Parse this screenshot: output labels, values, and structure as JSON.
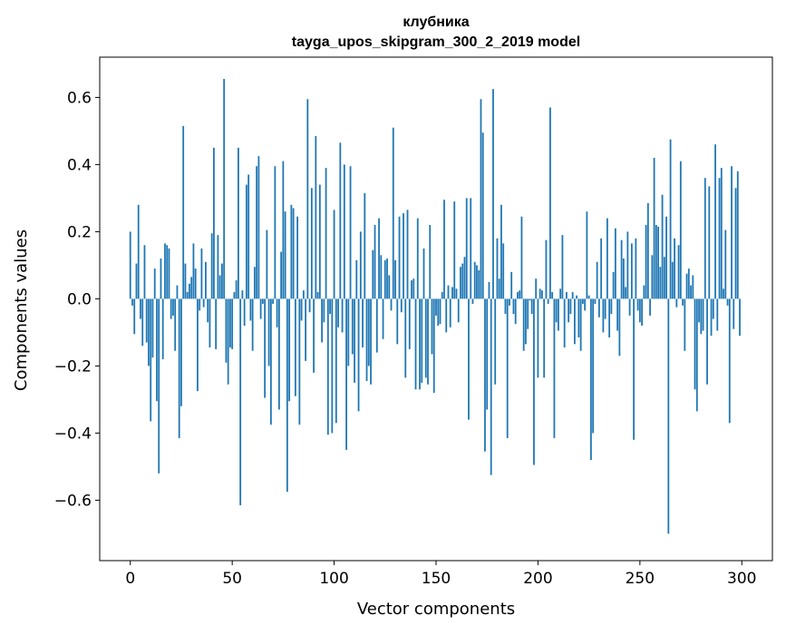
{
  "chart_data": {
    "type": "bar",
    "title": "клубника",
    "subtitle": "tayga_upos_skipgram_300_2_2019 model",
    "xlabel": "Vector components",
    "ylabel": "Components values",
    "xlim": [
      -15,
      315
    ],
    "ylim": [
      -0.78,
      0.72
    ],
    "xticks": [
      0,
      50,
      100,
      150,
      200,
      250,
      300
    ],
    "yticks": [
      -0.6,
      -0.4,
      -0.2,
      0.0,
      0.2,
      0.4,
      0.6
    ],
    "ytick_labels": [
      "−0.6",
      "−0.4",
      "−0.2",
      "0.0",
      "0.2",
      "0.4",
      "0.6"
    ],
    "grid": false,
    "bar_color": "#1f77b4",
    "values": [
      0.2,
      -0.02,
      -0.105,
      0.105,
      0.28,
      -0.06,
      -0.14,
      0.16,
      -0.13,
      -0.2,
      -0.365,
      -0.175,
      0.09,
      -0.305,
      -0.52,
      0.12,
      -0.18,
      0.165,
      0.16,
      0.15,
      -0.06,
      -0.05,
      -0.155,
      0.04,
      -0.415,
      -0.32,
      0.515,
      0.105,
      0.02,
      0.045,
      0.065,
      0.165,
      0.09,
      -0.275,
      -0.035,
      0.15,
      -0.025,
      0.11,
      -0.07,
      -0.145,
      0.195,
      0.45,
      -0.15,
      0.19,
      0.07,
      0.105,
      0.655,
      -0.19,
      -0.255,
      -0.145,
      -0.15,
      0.02,
      0.055,
      0.45,
      -0.615,
      0.025,
      -0.08,
      0.34,
      0.37,
      -0.065,
      -0.155,
      0.095,
      0.395,
      0.425,
      -0.06,
      -0.015,
      -0.295,
      0.205,
      -0.2,
      -0.375,
      -0.015,
      0.395,
      -0.085,
      -0.33,
      0.14,
      0.41,
      0.26,
      -0.575,
      -0.305,
      0.28,
      0.27,
      -0.29,
      0.245,
      -0.375,
      -0.065,
      0.025,
      -0.185,
      0.595,
      -0.04,
      0.33,
      -0.22,
      0.485,
      0.02,
      0.34,
      -0.13,
      -0.07,
      0.39,
      -0.405,
      -0.045,
      -0.4,
      0.265,
      -0.37,
      -0.085,
      0.465,
      -0.1,
      0.4,
      -0.45,
      -0.2,
      0.395,
      -0.165,
      -0.25,
      0.115,
      -0.335,
      0.2,
      -0.145,
      0.315,
      -0.245,
      -0.2,
      -0.255,
      0.145,
      0.22,
      -0.16,
      0.24,
      0.13,
      -0.12,
      0.115,
      0.12,
      0.07,
      -0.035,
      0.51,
      0.115,
      -0.135,
      0.245,
      -0.04,
      0.255,
      -0.235,
      0.265,
      -0.15,
      0.055,
      0.06,
      -0.27,
      0.24,
      -0.27,
      -0.25,
      0.15,
      -0.235,
      -0.255,
      0.22,
      -0.165,
      -0.28,
      -0.05,
      -0.08,
      -0.075,
      0.02,
      0.295,
      -0.1,
      0.04,
      -0.085,
      0.035,
      0.29,
      0.03,
      -0.07,
      0.095,
      0.105,
      0.125,
      0.3,
      -0.36,
      0.3,
      -0.015,
      0.11,
      0.1,
      0.085,
      0.595,
      0.495,
      -0.455,
      -0.33,
      0.05,
      -0.525,
      0.625,
      -0.255,
      0.18,
      0.06,
      0.28,
      0.165,
      -0.045,
      -0.415,
      -0.02,
      0.08,
      -0.045,
      -0.075,
      0.02,
      0.025,
      0.245,
      -0.155,
      -0.135,
      -0.09,
      -0.005,
      -0.045,
      -0.495,
      0.06,
      -0.235,
      0.03,
      0.025,
      -0.235,
      0.175,
      -0.015,
      0.57,
      0.02,
      -0.415,
      -0.07,
      -0.095,
      0.03,
      0.19,
      -0.145,
      0.02,
      -0.07,
      -0.045,
      0.02,
      -0.135,
      0.01,
      -0.115,
      -0.155,
      -0.015,
      -0.035,
      0.26,
      0.01,
      -0.48,
      -0.4,
      -0.015,
      0.11,
      -0.055,
      0.18,
      -0.1,
      -0.06,
      0.24,
      -0.115,
      -0.045,
      0.08,
      0.21,
      -0.095,
      -0.17,
      0.175,
      0.12,
      0.035,
      0.2,
      -0.05,
      0.165,
      -0.42,
      0.18,
      -0.035,
      -0.07,
      -0.08,
      0.04,
      0.22,
      0.285,
      -0.05,
      0.13,
      0.42,
      0.22,
      0.215,
      0.095,
      0.31,
      0.125,
      0.245,
      -0.7,
      0.475,
      0.11,
      0.18,
      -0.025,
      0.16,
      0.41,
      -0.02,
      -0.155,
      0.075,
      0.09,
      0.04,
      0.07,
      -0.27,
      -0.335,
      -0.07,
      -0.105,
      -0.095,
      0.36,
      -0.255,
      0.335,
      -0.11,
      -0.06,
      0.46,
      -0.095,
      0.36,
      0.39,
      0.03,
      0.205,
      -0.02,
      -0.37,
      0.395,
      -0.09,
      0.33,
      0.38,
      -0.11
    ]
  }
}
